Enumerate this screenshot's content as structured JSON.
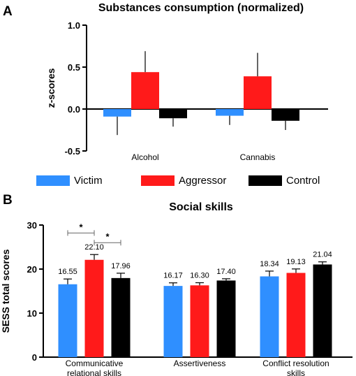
{
  "panels": {
    "a_letter": "A",
    "b_letter": "B"
  },
  "colors": {
    "victim": "#2f8fff",
    "aggressor": "#ff1a1a",
    "control": "#000000"
  },
  "legend": [
    {
      "name": "Victim",
      "color": "#2f8fff"
    },
    {
      "name": "Aggressor",
      "color": "#ff1a1a"
    },
    {
      "name": "Control",
      "color": "#000000"
    }
  ],
  "chart_data": [
    {
      "type": "bar",
      "title": "Substances consumption (normalized)",
      "xlabel": "",
      "ylabel": "z-scores",
      "ylim": [
        -0.5,
        1.0
      ],
      "yticks": [
        "1.0",
        "0.5",
        "0.0",
        "-0.5"
      ],
      "ytick_values": [
        1.0,
        0.5,
        0.0,
        -0.5
      ],
      "categories": [
        "Alcohol",
        "Cannabis"
      ],
      "series": [
        {
          "name": "Victim",
          "values": [
            -0.09,
            -0.08
          ],
          "errors": [
            0.22,
            0.11
          ]
        },
        {
          "name": "Aggressor",
          "values": [
            0.44,
            0.39
          ],
          "errors": [
            0.25,
            0.28
          ]
        },
        {
          "name": "Control",
          "values": [
            -0.11,
            -0.14
          ],
          "errors": [
            0.1,
            0.11
          ]
        }
      ],
      "legend": "below"
    },
    {
      "type": "bar",
      "title": "Social skills",
      "xlabel": "",
      "ylabel": "SESS total scores",
      "ylim": [
        0,
        30
      ],
      "yticks": [
        "30",
        "20",
        "10",
        "0"
      ],
      "ytick_values": [
        30,
        20,
        10,
        0
      ],
      "categories": [
        "Communicative relational skills",
        "Assertiveness",
        "Conflict resolution skills"
      ],
      "category_lines": [
        [
          "Communicative",
          "relational skills"
        ],
        [
          "Assertiveness"
        ],
        [
          "Conflict resolution",
          "skills"
        ]
      ],
      "series": [
        {
          "name": "Victim",
          "values": [
            16.55,
            16.17,
            18.34
          ],
          "labels": [
            "16.55",
            "16.17",
            "18.34"
          ],
          "errors": [
            1.2,
            0.7,
            1.2
          ]
        },
        {
          "name": "Aggressor",
          "values": [
            22.1,
            16.3,
            19.13
          ],
          "labels": [
            "22.10",
            "16.30",
            "19.13"
          ],
          "errors": [
            1.2,
            0.6,
            0.9
          ]
        },
        {
          "name": "Control",
          "values": [
            17.96,
            17.4,
            21.04
          ],
          "labels": [
            "17.96",
            "17.40",
            "21.04"
          ],
          "errors": [
            1.1,
            0.4,
            0.6
          ]
        }
      ],
      "significance": [
        {
          "category": 0,
          "from": 0,
          "to": 1,
          "label": "*",
          "y": 28.2
        },
        {
          "category": 0,
          "from": 1,
          "to": 2,
          "label": "*",
          "y": 26.0
        }
      ]
    }
  ]
}
